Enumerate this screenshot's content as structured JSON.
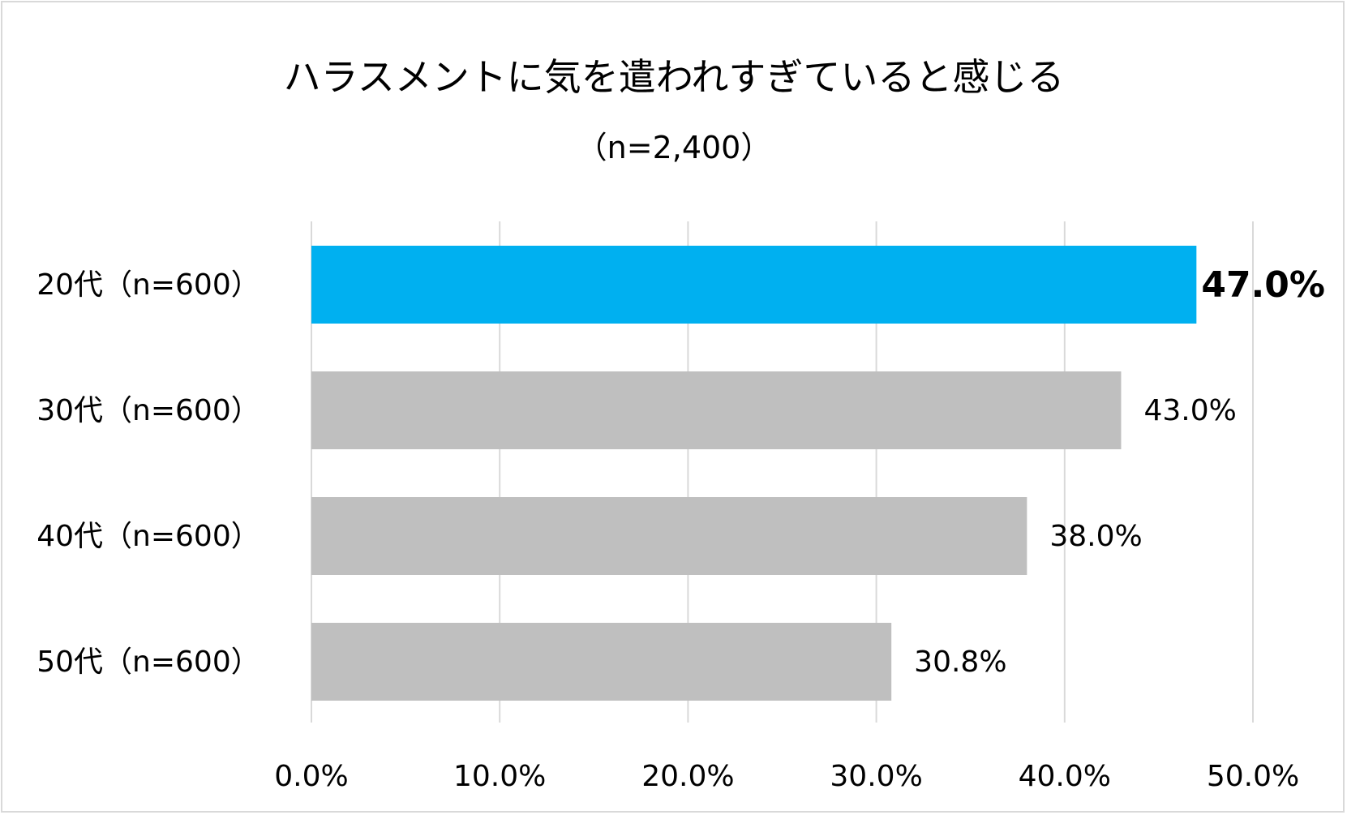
{
  "chart_data": {
    "type": "bar",
    "orientation": "horizontal",
    "title": "ハラスメントに気を遣われすぎていると感じる",
    "subtitle": "（n=2,400）",
    "categories": [
      "20代（n=600）",
      "30代（n=600）",
      "40代（n=600）",
      "50代（n=600）"
    ],
    "values": [
      47.0,
      43.0,
      38.0,
      30.8
    ],
    "value_labels": [
      "47.0%",
      "43.0%",
      "38.0%",
      "30.8%"
    ],
    "highlight_index": 0,
    "xlim": [
      0,
      50
    ],
    "ticks": [
      0,
      10,
      20,
      30,
      40,
      50
    ],
    "tick_labels": [
      "0.0%",
      "10.0%",
      "20.0%",
      "30.0%",
      "40.0%",
      "50.0%"
    ],
    "grid": true,
    "legend": "none",
    "colors": {
      "highlight": "#00b0f0",
      "default": "#bfbfbf",
      "grid": "#d9d9d9",
      "frame": "#d9d9d9"
    }
  }
}
